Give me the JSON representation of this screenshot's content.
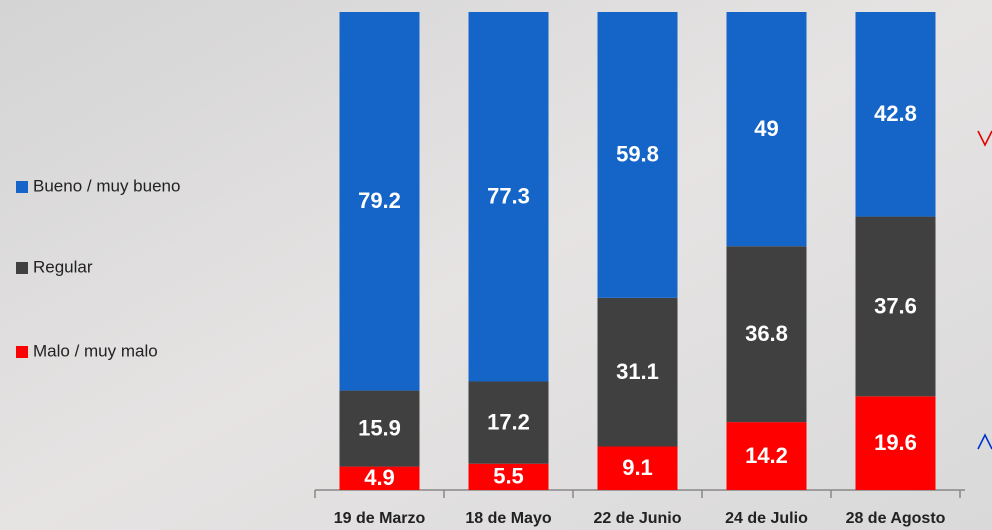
{
  "chart_data": {
    "type": "stacked-bar",
    "categories": [
      "19 de Marzo",
      "18 de Mayo",
      "22 de Junio",
      "24 de Julio",
      "28 de Agosto"
    ],
    "series": [
      {
        "name": "Bueno / muy bueno",
        "color": "#1565c8",
        "values": [
          79.2,
          77.3,
          59.8,
          49,
          42.8
        ]
      },
      {
        "name": "Regular",
        "color": "#404040",
        "values": [
          15.9,
          17.2,
          31.1,
          36.8,
          37.6
        ]
      },
      {
        "name": "Malo / muy malo",
        "color": "#ff0000",
        "values": [
          4.9,
          5.5,
          9.1,
          14.2,
          19.6
        ]
      }
    ]
  }
}
